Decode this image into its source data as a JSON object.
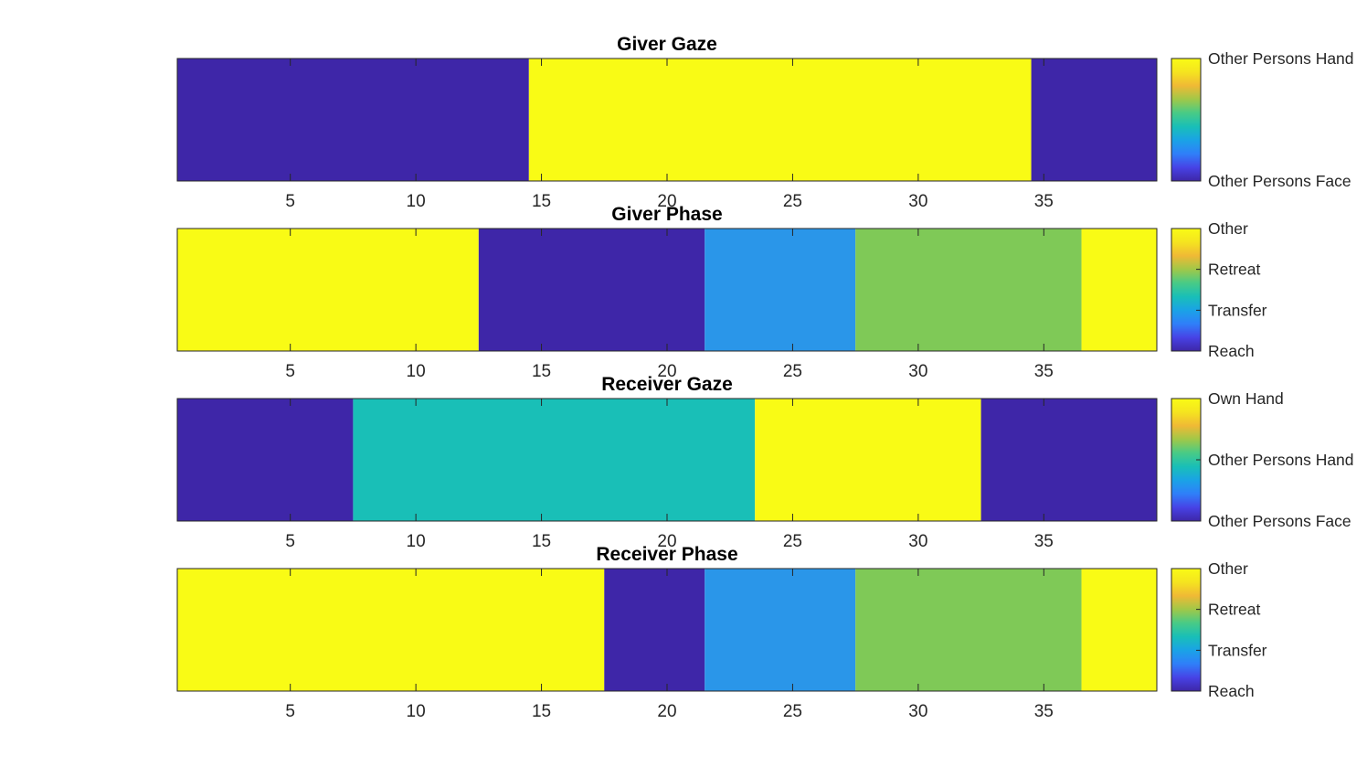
{
  "chart_data": [
    {
      "type": "heatmap",
      "title": "Giver Gaze",
      "x_range": [
        0.5,
        39.5
      ],
      "x_ticks": [
        5,
        10,
        15,
        20,
        25,
        30,
        35
      ],
      "segments": [
        {
          "start": 0.5,
          "end": 14.5,
          "color": "#3e26a8"
        },
        {
          "start": 14.5,
          "end": 34.5,
          "color": "#f9fb15"
        },
        {
          "start": 34.5,
          "end": 39.5,
          "color": "#3e26a8"
        }
      ],
      "colorbar": {
        "labels": [
          {
            "text": "Other Persons Face",
            "pos": 0
          },
          {
            "text": "Other Persons Hand",
            "pos": 1
          }
        ]
      }
    },
    {
      "type": "heatmap",
      "title": "Giver Phase",
      "x_range": [
        0.5,
        39.5
      ],
      "x_ticks": [
        5,
        10,
        15,
        20,
        25,
        30,
        35
      ],
      "segments": [
        {
          "start": 0.5,
          "end": 12.5,
          "color": "#f9fb15"
        },
        {
          "start": 12.5,
          "end": 21.5,
          "color": "#3e26a8"
        },
        {
          "start": 21.5,
          "end": 27.5,
          "color": "#2a96e9"
        },
        {
          "start": 27.5,
          "end": 36.5,
          "color": "#7fc957"
        },
        {
          "start": 36.5,
          "end": 39.5,
          "color": "#f9fb15"
        }
      ],
      "colorbar": {
        "labels": [
          {
            "text": "Reach",
            "pos": 0
          },
          {
            "text": "Transfer",
            "pos": 0.333
          },
          {
            "text": "Retreat",
            "pos": 0.667
          },
          {
            "text": "Other",
            "pos": 1
          }
        ]
      }
    },
    {
      "type": "heatmap",
      "title": "Receiver Gaze",
      "x_range": [
        0.5,
        39.5
      ],
      "x_ticks": [
        5,
        10,
        15,
        20,
        25,
        30,
        35
      ],
      "segments": [
        {
          "start": 0.5,
          "end": 7.5,
          "color": "#3e26a8"
        },
        {
          "start": 7.5,
          "end": 23.5,
          "color": "#19bfb7"
        },
        {
          "start": 23.5,
          "end": 32.5,
          "color": "#f9fb15"
        },
        {
          "start": 32.5,
          "end": 39.5,
          "color": "#3e26a8"
        }
      ],
      "colorbar": {
        "labels": [
          {
            "text": "Other Persons Face",
            "pos": 0
          },
          {
            "text": "Other Persons Hand",
            "pos": 0.5
          },
          {
            "text": "Own Hand",
            "pos": 1
          }
        ]
      }
    },
    {
      "type": "heatmap",
      "title": "Receiver Phase",
      "x_range": [
        0.5,
        39.5
      ],
      "x_ticks": [
        5,
        10,
        15,
        20,
        25,
        30,
        35
      ],
      "segments": [
        {
          "start": 0.5,
          "end": 17.5,
          "color": "#f9fb15"
        },
        {
          "start": 17.5,
          "end": 21.5,
          "color": "#3e26a8"
        },
        {
          "start": 21.5,
          "end": 27.5,
          "color": "#2a96e9"
        },
        {
          "start": 27.5,
          "end": 36.5,
          "color": "#7fc957"
        },
        {
          "start": 36.5,
          "end": 39.5,
          "color": "#f9fb15"
        }
      ],
      "colorbar": {
        "labels": [
          {
            "text": "Reach",
            "pos": 0
          },
          {
            "text": "Transfer",
            "pos": 0.333
          },
          {
            "text": "Retreat",
            "pos": 0.667
          },
          {
            "text": "Other",
            "pos": 1
          }
        ]
      }
    }
  ],
  "colormap": [
    "#3e26a8",
    "#4743e6",
    "#2f7ff9",
    "#1aa3e6",
    "#19bfb7",
    "#48cb86",
    "#a0c848",
    "#f0b935",
    "#f5e41f",
    "#f9fb15"
  ]
}
